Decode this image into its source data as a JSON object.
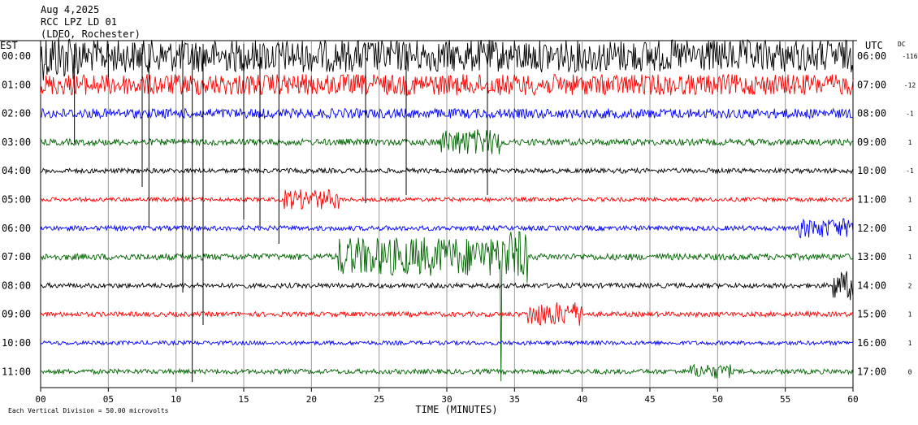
{
  "header": {
    "date": "Aug 4,2025",
    "station": "RCC LPZ LD 01",
    "location": "(LDEO, Rochester)"
  },
  "axes": {
    "left_title": "EST",
    "right_title": "UTC",
    "dc_title": "DC",
    "x_title": "TIME (MINUTES)",
    "footer": "Each Vertical Division =   50.00 microvolts"
  },
  "chart_data": {
    "type": "line",
    "title": "",
    "xlabel": "TIME (MINUTES)",
    "ylabel": "",
    "xlim": [
      0,
      60
    ],
    "x_ticks": [
      "00",
      "05",
      "10",
      "15",
      "20",
      "25",
      "30",
      "35",
      "40",
      "45",
      "50",
      "55",
      "60"
    ],
    "grid": true,
    "rows": [
      {
        "est": "00:00",
        "utc": "06:00",
        "dc": "-116",
        "color": "#000000"
      },
      {
        "est": "01:00",
        "utc": "07:00",
        "dc": "-12",
        "color": "#ff0000"
      },
      {
        "est": "02:00",
        "utc": "08:00",
        "dc": "-1",
        "color": "#0000ff"
      },
      {
        "est": "03:00",
        "utc": "09:00",
        "dc": "1",
        "color": "#006400"
      },
      {
        "est": "04:00",
        "utc": "10:00",
        "dc": "-1",
        "color": "#000000"
      },
      {
        "est": "05:00",
        "utc": "11:00",
        "dc": "1",
        "color": "#ff0000"
      },
      {
        "est": "06:00",
        "utc": "12:00",
        "dc": "1",
        "color": "#0000ff"
      },
      {
        "est": "07:00",
        "utc": "13:00",
        "dc": "1",
        "color": "#006400"
      },
      {
        "est": "08:00",
        "utc": "14:00",
        "dc": "2",
        "color": "#000000"
      },
      {
        "est": "09:00",
        "utc": "15:00",
        "dc": "1",
        "color": "#ff0000"
      },
      {
        "est": "10:00",
        "utc": "16:00",
        "dc": "1",
        "color": "#0000ff"
      },
      {
        "est": "11:00",
        "utc": "17:00",
        "dc": "0",
        "color": "#006400"
      }
    ]
  }
}
